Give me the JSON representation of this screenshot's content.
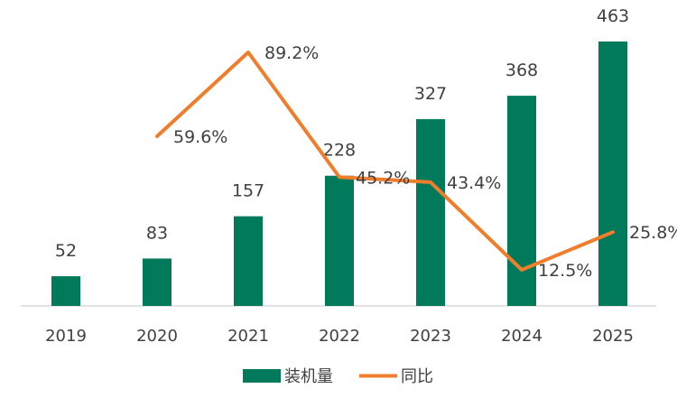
{
  "chart_data": {
    "type": "bar+line",
    "categories": [
      "2019",
      "2020",
      "2021",
      "2022",
      "2023",
      "2024",
      "2025"
    ],
    "series": [
      {
        "name": "装机量",
        "type": "bar",
        "color": "#007a5a",
        "values": [
          52,
          83,
          157,
          228,
          327,
          368,
          463
        ]
      },
      {
        "name": "同比",
        "type": "line",
        "color": "#f07d2c",
        "values": [
          null,
          59.6,
          89.2,
          45.2,
          43.4,
          12.5,
          25.8
        ]
      }
    ],
    "bar_labels": [
      "52",
      "83",
      "157",
      "228",
      "327",
      "368",
      "463"
    ],
    "line_labels": [
      "",
      "59.6%",
      "89.2%",
      "45.2%",
      "43.4%",
      "12.5%",
      "25.8%"
    ],
    "legend": {
      "position": "bottom",
      "items": [
        "装机量",
        "同比"
      ]
    },
    "grid": false
  }
}
